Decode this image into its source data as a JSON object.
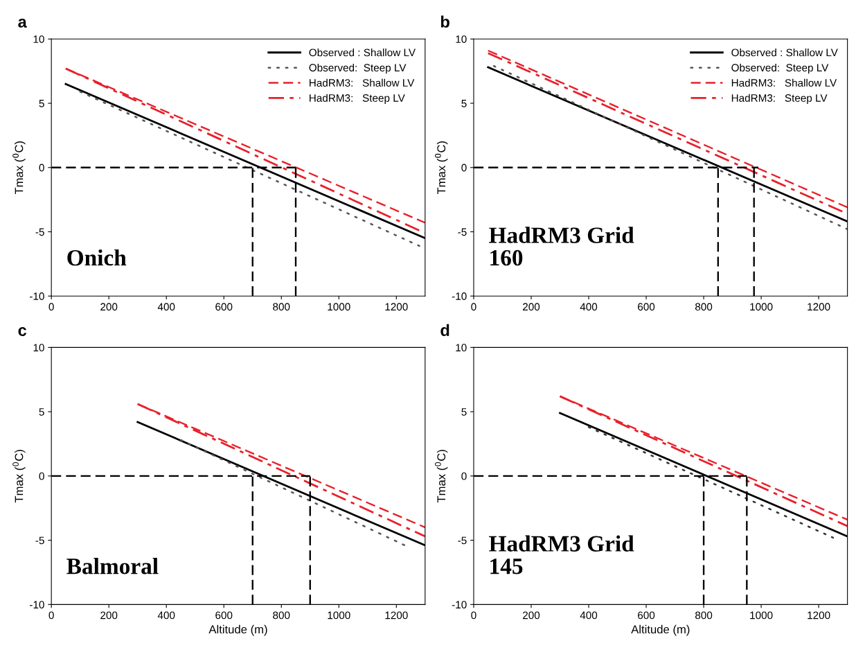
{
  "chart_data": [
    {
      "type": "line",
      "title": "a",
      "ylabel": "Tmax ($^{0}$C)",
      "xlim": [
        0,
        1300
      ],
      "xticks": [
        0,
        200,
        400,
        600,
        800,
        1000,
        1200
      ],
      "ylim": [
        -10,
        10
      ],
      "yticks": [
        -10,
        -5,
        0,
        5,
        10
      ],
      "grid": false,
      "legend": "top right",
      "annotations": [
        "Onich"
      ],
      "series": [
        {
          "name": "Observed : Shallow LV",
          "color": "#000000",
          "line_style": "solid",
          "x": [
            50,
            1300
          ],
          "values": [
            6.5,
            -5.5
          ]
        },
        {
          "name": "Observed:  Steep LV",
          "color": "#555555",
          "line_style": "dotted",
          "x": [
            100,
            1280
          ],
          "values": [
            5.9,
            -6.1
          ]
        },
        {
          "name": "HadRM3:   Shallow LV",
          "color": "#e8202a",
          "line_style": "dashed",
          "x": [
            50,
            1300
          ],
          "values": [
            7.7,
            -4.3
          ]
        },
        {
          "name": "HadRM3:   Steep LV",
          "color": "#e8202a",
          "line_style": "dashdot",
          "x": [
            50,
            1300
          ],
          "values": [
            7.7,
            -5.1
          ]
        },
        {
          "color": "#000000",
          "line_style": "dashed",
          "x": [
            0,
            850
          ],
          "values": [
            0,
            0
          ]
        },
        {
          "color": "#000000",
          "line_style": "dashed",
          "x": [
            700,
            700
          ],
          "values": [
            -10,
            0
          ]
        },
        {
          "color": "#000000",
          "line_style": "dashed",
          "x": [
            850,
            850
          ],
          "values": [
            -10,
            0
          ]
        }
      ]
    },
    {
      "type": "line",
      "title": "b",
      "ylabel": "Tmax ($^{0}$C)",
      "xlim": [
        0,
        1300
      ],
      "xticks": [
        0,
        200,
        400,
        600,
        800,
        1000,
        1200
      ],
      "ylim": [
        -10,
        10
      ],
      "yticks": [
        -10,
        -5,
        0,
        5,
        10
      ],
      "grid": false,
      "legend": "top right",
      "annotations": [
        "HadRM3 Grid\n160"
      ],
      "series": [
        {
          "name": "Observed : Shallow LV",
          "color": "#000000",
          "line_style": "solid",
          "x": [
            50,
            1300
          ],
          "values": [
            7.8,
            -4.2
          ]
        },
        {
          "name": "Observed:  Steep LV",
          "color": "#555555",
          "line_style": "dotted",
          "x": [
            70,
            1300
          ],
          "values": [
            7.9,
            -4.8
          ]
        },
        {
          "name": "HadRM3:   Shallow LV",
          "color": "#e8202a",
          "line_style": "dashed",
          "x": [
            50,
            1300
          ],
          "values": [
            9.1,
            -3.1
          ]
        },
        {
          "name": "HadRM3:   Steep LV",
          "color": "#e8202a",
          "line_style": "dashdot",
          "x": [
            50,
            1300
          ],
          "values": [
            8.9,
            -3.6
          ]
        },
        {
          "color": "#000000",
          "line_style": "dashed",
          "x": [
            0,
            990
          ],
          "values": [
            0,
            0
          ]
        },
        {
          "color": "#000000",
          "line_style": "dashed",
          "x": [
            850,
            850
          ],
          "values": [
            -10,
            0
          ]
        },
        {
          "color": "#000000",
          "line_style": "dashed",
          "x": [
            975,
            975
          ],
          "values": [
            -10,
            0
          ]
        }
      ]
    },
    {
      "type": "line",
      "title": "c",
      "xlabel": "Altitude (m)",
      "ylabel": "Tmax ($^{0}$C)",
      "xlim": [
        0,
        1300
      ],
      "xticks": [
        0,
        200,
        400,
        600,
        800,
        1000,
        1200
      ],
      "ylim": [
        -10,
        10
      ],
      "yticks": [
        -10,
        -5,
        0,
        5,
        10
      ],
      "grid": false,
      "annotations": [
        "Balmoral"
      ],
      "series": [
        {
          "color": "#000000",
          "line_style": "solid",
          "x": [
            300,
            1300
          ],
          "values": [
            4.2,
            -5.4
          ]
        },
        {
          "color": "#555555",
          "line_style": "dotted",
          "x": [
            450,
            1230
          ],
          "values": [
            2.8,
            -5.4
          ]
        },
        {
          "color": "#e8202a",
          "line_style": "dashed",
          "x": [
            300,
            1300
          ],
          "values": [
            5.6,
            -4.0
          ]
        },
        {
          "color": "#e8202a",
          "line_style": "dashdot",
          "x": [
            300,
            1300
          ],
          "values": [
            5.6,
            -4.7
          ]
        },
        {
          "color": "#000000",
          "line_style": "dashed",
          "x": [
            0,
            900
          ],
          "values": [
            0,
            0
          ]
        },
        {
          "color": "#000000",
          "line_style": "dashed",
          "x": [
            700,
            700
          ],
          "values": [
            -10,
            0
          ]
        },
        {
          "color": "#000000",
          "line_style": "dashed",
          "x": [
            900,
            900
          ],
          "values": [
            -10,
            0
          ]
        }
      ]
    },
    {
      "type": "line",
      "title": "d",
      "xlabel": "Altitude (m)",
      "ylabel": "Tmax ($^{0}$C)",
      "xlim": [
        0,
        1300
      ],
      "xticks": [
        0,
        200,
        400,
        600,
        800,
        1000,
        1200
      ],
      "ylim": [
        -10,
        10
      ],
      "yticks": [
        -10,
        -5,
        0,
        5,
        10
      ],
      "grid": false,
      "annotations": [
        "HadRM3 Grid\n145"
      ],
      "series": [
        {
          "color": "#000000",
          "line_style": "solid",
          "x": [
            300,
            1300
          ],
          "values": [
            4.9,
            -4.7
          ]
        },
        {
          "color": "#333333",
          "line_style": "dotted",
          "x": [
            400,
            1250
          ],
          "values": [
            3.8,
            -4.8
          ]
        },
        {
          "color": "#e8202a",
          "line_style": "dashed",
          "x": [
            300,
            1300
          ],
          "values": [
            6.2,
            -3.4
          ]
        },
        {
          "color": "#e8202a",
          "line_style": "dashdot",
          "x": [
            300,
            1300
          ],
          "values": [
            6.2,
            -3.9
          ]
        },
        {
          "color": "#000000",
          "line_style": "dashed",
          "x": [
            0,
            950
          ],
          "values": [
            0,
            0
          ]
        },
        {
          "color": "#000000",
          "line_style": "dashed",
          "x": [
            800,
            800
          ],
          "values": [
            -10,
            0
          ]
        },
        {
          "color": "#000000",
          "line_style": "dashed",
          "x": [
            950,
            950
          ],
          "values": [
            -10,
            0
          ]
        }
      ]
    }
  ]
}
